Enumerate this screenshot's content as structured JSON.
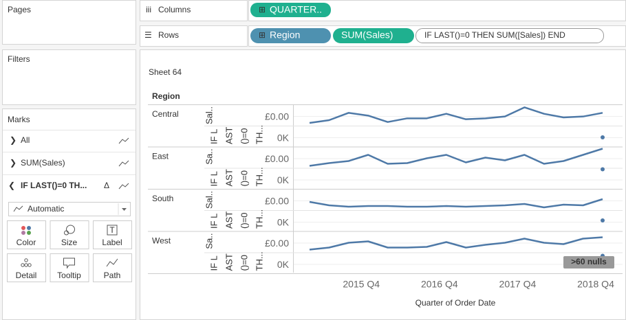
{
  "sidebar": {
    "pages": "Pages",
    "filters": "Filters",
    "marks": {
      "title": "Marks",
      "cards": [
        "All",
        "SUM(Sales)",
        "IF LAST()=0 TH..."
      ],
      "mark_type": "Automatic",
      "buttons": [
        "Color",
        "Size",
        "Label",
        "Detail",
        "Tooltip",
        "Path"
      ]
    }
  },
  "shelves": {
    "columns": {
      "label": "Columns",
      "pills": [
        "QUARTER.."
      ]
    },
    "rows": {
      "label": "Rows",
      "pills": [
        "Region",
        "SUM(Sales)"
      ],
      "calc": "IF LAST()=0 THEN SUM([Sales]) END"
    }
  },
  "chart_data": {
    "type": "line",
    "title": "Sheet 64",
    "row_header": "Region",
    "x_label": "Quarter of Order Date",
    "categories": [
      null,
      null,
      null,
      "2015 Q4",
      null,
      null,
      null,
      "2016 Q4",
      null,
      null,
      null,
      "2017 Q4",
      null,
      null,
      null,
      "2018 Q4"
    ],
    "color": "#4e79a7",
    "null_badge": ">60 nulls",
    "series": [
      {
        "name": "Central",
        "axis_labels": [
          "Sal..",
          "IF L",
          "AST",
          "()=0",
          "TH..."
        ],
        "tick_labels": [
          "£0.00",
          "0K"
        ],
        "values": [
          12,
          24,
          56,
          44,
          16,
          32,
          32,
          52,
          28,
          32,
          40,
          80,
          52,
          36,
          40,
          56
        ]
      },
      {
        "name": "East",
        "axis_labels": [
          "Sa..",
          "IF L",
          "AST",
          "()=0",
          "TH..."
        ],
        "tick_labels": [
          "£0.00",
          "0K"
        ],
        "values": [
          9,
          21,
          30,
          57,
          18,
          21,
          42,
          57,
          24,
          45,
          33,
          57,
          18,
          30,
          57,
          84
        ]
      },
      {
        "name": "South",
        "axis_labels": [
          "Sal..",
          "IF L",
          "AST",
          "()=0",
          "TH..."
        ],
        "tick_labels": [
          "£0.00",
          "0K"
        ],
        "values": [
          36,
          21,
          15,
          18,
          18,
          15,
          15,
          18,
          15,
          18,
          21,
          27,
          12,
          24,
          21,
          48
        ]
      },
      {
        "name": "West",
        "axis_labels": [
          "Sa..",
          "IF L",
          "AST",
          "()=0",
          "TH..."
        ],
        "tick_labels": [
          "£0.00",
          "0K"
        ],
        "values": [
          12,
          21,
          42,
          48,
          21,
          21,
          24,
          45,
          21,
          33,
          42,
          60,
          42,
          36,
          60,
          66
        ]
      }
    ]
  }
}
